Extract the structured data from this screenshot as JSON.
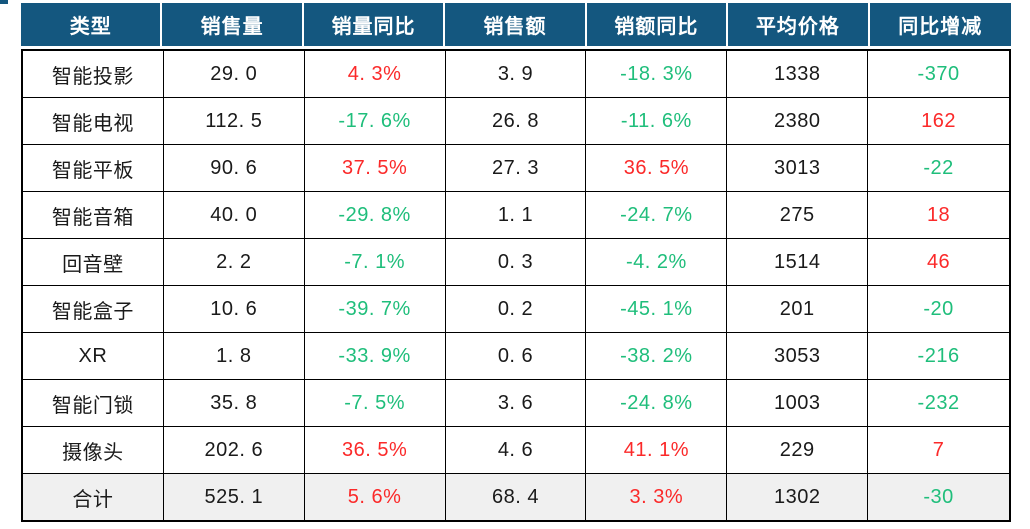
{
  "palette": {
    "header_bg": "#14577F",
    "header_text": "#FFFFFF",
    "positive_red": "#FB2929",
    "negative_green": "#1FBE7B",
    "body_text": "#1A1A1A",
    "grid_border": "#000000",
    "total_row_bg": "#F0F0F0"
  },
  "chart_data": {
    "type": "table",
    "columns": [
      "类型",
      "销售量",
      "销量同比",
      "销售额",
      "销额同比",
      "平均价格",
      "同比增减"
    ],
    "rows": [
      {
        "cells": [
          "智能投影",
          "29. 0",
          "4. 3%",
          "3. 9",
          "-18. 3%",
          "1338",
          "-370"
        ],
        "colors": [
          "default",
          "default",
          "red",
          "default",
          "green",
          "default",
          "green"
        ]
      },
      {
        "cells": [
          "智能电视",
          "112. 5",
          "-17. 6%",
          "26. 8",
          "-11. 6%",
          "2380",
          "162"
        ],
        "colors": [
          "default",
          "default",
          "green",
          "default",
          "green",
          "default",
          "red"
        ]
      },
      {
        "cells": [
          "智能平板",
          "90. 6",
          "37. 5%",
          "27. 3",
          "36. 5%",
          "3013",
          "-22"
        ],
        "colors": [
          "default",
          "default",
          "red",
          "default",
          "red",
          "default",
          "green"
        ]
      },
      {
        "cells": [
          "智能音箱",
          "40. 0",
          "-29. 8%",
          "1. 1",
          "-24. 7%",
          "275",
          "18"
        ],
        "colors": [
          "default",
          "default",
          "green",
          "default",
          "green",
          "default",
          "red"
        ]
      },
      {
        "cells": [
          "回音壁",
          "2. 2",
          "-7. 1%",
          "0. 3",
          "-4. 2%",
          "1514",
          "46"
        ],
        "colors": [
          "default",
          "default",
          "green",
          "default",
          "green",
          "default",
          "red"
        ]
      },
      {
        "cells": [
          "智能盒子",
          "10. 6",
          "-39. 7%",
          "0. 2",
          "-45. 1%",
          "201",
          "-20"
        ],
        "colors": [
          "default",
          "default",
          "green",
          "default",
          "green",
          "default",
          "green"
        ]
      },
      {
        "cells": [
          "XR",
          "1. 8",
          "-33. 9%",
          "0. 6",
          "-38. 2%",
          "3053",
          "-216"
        ],
        "colors": [
          "default",
          "default",
          "green",
          "default",
          "green",
          "default",
          "green"
        ]
      },
      {
        "cells": [
          "智能门锁",
          "35. 8",
          "-7. 5%",
          "3. 6",
          "-24. 8%",
          "1003",
          "-232"
        ],
        "colors": [
          "default",
          "default",
          "green",
          "default",
          "green",
          "default",
          "green"
        ]
      },
      {
        "cells": [
          "摄像头",
          "202. 6",
          "36. 5%",
          "4. 6",
          "41. 1%",
          "229",
          "7"
        ],
        "colors": [
          "default",
          "default",
          "red",
          "default",
          "red",
          "default",
          "red"
        ]
      },
      {
        "cells": [
          "合计",
          "525. 1",
          "5. 6%",
          "68. 4",
          "3. 3%",
          "1302",
          "-30"
        ],
        "colors": [
          "default",
          "default",
          "red",
          "default",
          "red",
          "default",
          "green"
        ]
      }
    ]
  }
}
